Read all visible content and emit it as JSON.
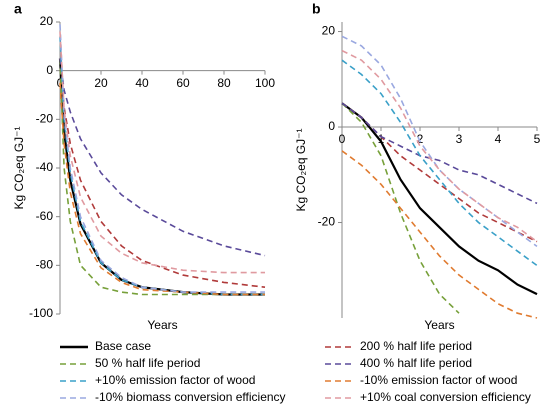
{
  "chart_data": [
    {
      "type": "line",
      "title": "a",
      "xlabel": "Years",
      "ylabel": "Kg CO₂eq GJ⁻¹",
      "x": [
        0,
        2,
        5,
        10,
        20,
        30,
        40,
        60,
        80,
        100
      ],
      "xlim": [
        0,
        100
      ],
      "xticks": [
        0,
        20,
        40,
        60,
        80,
        100
      ],
      "ylim": [
        -100,
        20
      ],
      "yticks": [
        20,
        0,
        -20,
        -40,
        -60,
        -80,
        -100
      ],
      "series": [
        {
          "name": "Base case",
          "color": "#000000",
          "dash": false,
          "values": [
            5,
            -25,
            -45,
            -63,
            -79,
            -86,
            -89,
            -91,
            -92,
            -92
          ]
        },
        {
          "name": "200 % half life period",
          "color": "#b03a3a",
          "dash": true,
          "values": [
            5,
            -15,
            -30,
            -45,
            -62,
            -72,
            -78,
            -84,
            -87,
            -89
          ]
        },
        {
          "name": "50 % half life period",
          "color": "#77a03a",
          "dash": true,
          "values": [
            5,
            -40,
            -62,
            -80,
            -89,
            -91,
            -92,
            -92,
            -92,
            -92
          ]
        },
        {
          "name": "400 % half life period",
          "color": "#5a4a9a",
          "dash": true,
          "values": [
            5,
            -8,
            -17,
            -28,
            -42,
            -51,
            -57,
            -66,
            -72,
            -76
          ]
        },
        {
          "name": "+10% emission factor of wood",
          "color": "#3aa0c8",
          "dash": true,
          "values": [
            14,
            -20,
            -42,
            -62,
            -79,
            -86,
            -89,
            -91,
            -92,
            -92
          ]
        },
        {
          "name": "-10% emission factor of wood",
          "color": "#e07b30",
          "dash": true,
          "values": [
            -5,
            -30,
            -50,
            -67,
            -81,
            -87,
            -90,
            -91,
            -92,
            -92
          ]
        },
        {
          "name": "-10% biomass conversion efficiency",
          "color": "#9aa8e0",
          "dash": true,
          "values": [
            19,
            -18,
            -40,
            -60,
            -78,
            -85,
            -89,
            -91,
            -91,
            -91
          ]
        },
        {
          "name": "+10% coal conversion efficiency",
          "color": "#e09aa0",
          "dash": true,
          "values": [
            16,
            -16,
            -35,
            -52,
            -68,
            -75,
            -79,
            -82,
            -83,
            -83
          ]
        }
      ]
    },
    {
      "type": "line",
      "title": "b",
      "xlabel": "Years",
      "ylabel": "Kg CO₂eq GJ⁻¹",
      "x": [
        0,
        0.5,
        1,
        1.5,
        2,
        2.5,
        3,
        3.5,
        4,
        4.5,
        5
      ],
      "xlim": [
        0,
        5
      ],
      "xticks": [
        0,
        1,
        2,
        3,
        4,
        5
      ],
      "ylim": [
        -40,
        22
      ],
      "yticks": [
        20,
        0,
        -20
      ],
      "series": [
        {
          "color": "#000000",
          "dash": false,
          "values": [
            5,
            2,
            -3,
            -11,
            -17,
            -21,
            -25,
            -28,
            -30,
            -33,
            -35
          ]
        },
        {
          "color": "#b03a3a",
          "dash": true,
          "values": [
            5,
            2,
            -2,
            -6,
            -9,
            -12,
            -15,
            -18,
            -20,
            -22,
            -24
          ]
        },
        {
          "color": "#77a03a",
          "dash": true,
          "values": [
            5,
            1,
            -6,
            -18,
            -28,
            -35,
            -39,
            null,
            null,
            null,
            null
          ]
        },
        {
          "color": "#5a4a9a",
          "dash": true,
          "values": [
            5,
            2,
            -2,
            -4,
            -6,
            -7,
            -9,
            -10,
            -12,
            -14,
            -16
          ]
        },
        {
          "color": "#3aa0c8",
          "dash": true,
          "values": [
            14,
            11,
            7,
            1,
            -6,
            -11,
            -16,
            -20,
            -23,
            -26,
            -29
          ]
        },
        {
          "color": "#e07b30",
          "dash": true,
          "values": [
            -5,
            -8,
            -12,
            -17,
            -22,
            -27,
            -31,
            -34,
            -37,
            -39,
            -40
          ]
        },
        {
          "color": "#9aa8e0",
          "dash": true,
          "values": [
            19,
            17,
            13,
            6,
            -3,
            -9,
            -13,
            -16,
            -19,
            -22,
            -25
          ]
        },
        {
          "color": "#e09aa0",
          "dash": true,
          "values": [
            16,
            14,
            10,
            4,
            -4,
            -9,
            -13,
            -16,
            -19,
            -21,
            -24
          ]
        }
      ]
    }
  ]
}
